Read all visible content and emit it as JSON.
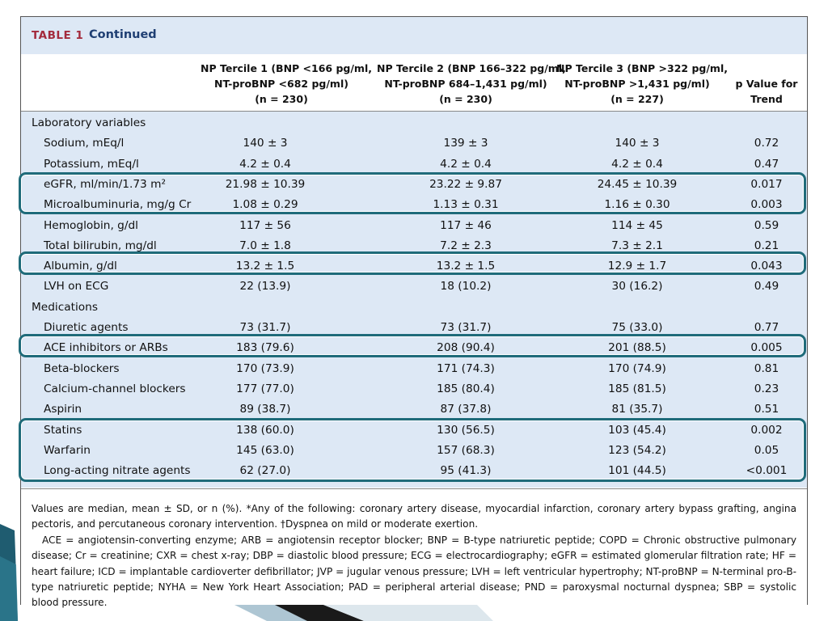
{
  "table": {
    "label": "TABLE 1",
    "continued": "Continued",
    "headers": {
      "col1": [
        "NP Tercile 1 (BNP <166 pg/ml,",
        "NT-proBNP <682 pg/ml)",
        "(n = 230)"
      ],
      "col2": [
        "NP Tercile 2 (BNP 166–322 pg/ml,",
        "NT-proBNP 684–1,431 pg/ml)",
        "(n = 230)"
      ],
      "col3": [
        "NP Tercile 3 (BNP >322 pg/ml,",
        "NT-proBNP >1,431 pg/ml)",
        "(n = 227)"
      ],
      "col4": [
        "p Value for",
        "Trend"
      ]
    },
    "rows": [
      {
        "label": "Laboratory variables",
        "section": true,
        "c1": "",
        "c2": "",
        "c3": "",
        "c4": ""
      },
      {
        "label": "Sodium, mEq/l",
        "c1": "140 ± 3",
        "c2": "139 ± 3",
        "c3": "140 ± 3",
        "c4": "0.72"
      },
      {
        "label": "Potassium, mEq/l",
        "c1": "4.2 ± 0.4",
        "c2": "4.2 ± 0.4",
        "c3": "4.2 ± 0.4",
        "c4": "0.47"
      },
      {
        "label": "eGFR, ml/min/1.73 m²",
        "c1": "21.98 ± 10.39",
        "c2": "23.22 ± 9.87",
        "c3": "24.45 ± 10.39",
        "c4": "0.017"
      },
      {
        "label": "Microalbuminuria, mg/g Cr",
        "c1": "1.08 ± 0.29",
        "c2": "1.13 ± 0.31",
        "c3": "1.16 ± 0.30",
        "c4": "0.003"
      },
      {
        "label": "Hemoglobin, g/dl",
        "c1": "117 ± 56",
        "c2": "117 ± 46",
        "c3": "114 ± 45",
        "c4": "0.59"
      },
      {
        "label": "Total bilirubin, mg/dl",
        "c1": "7.0 ± 1.8",
        "c2": "7.2 ± 2.3",
        "c3": "7.3 ± 2.1",
        "c4": "0.21"
      },
      {
        "label": "Albumin, g/dl",
        "c1": "13.2 ± 1.5",
        "c2": "13.2 ± 1.5",
        "c3": "12.9 ± 1.7",
        "c4": "0.043"
      },
      {
        "label": "LVH on ECG",
        "c1": "22 (13.9)",
        "c2": "18 (10.2)",
        "c3": "30 (16.2)",
        "c4": "0.49"
      },
      {
        "label": "Medications",
        "section": true,
        "c1": "",
        "c2": "",
        "c3": "",
        "c4": ""
      },
      {
        "label": "Diuretic agents",
        "c1": "73 (31.7)",
        "c2": "73 (31.7)",
        "c3": "75 (33.0)",
        "c4": "0.77"
      },
      {
        "label": "ACE inhibitors or ARBs",
        "c1": "183 (79.6)",
        "c2": "208 (90.4)",
        "c3": "201 (88.5)",
        "c4": "0.005"
      },
      {
        "label": "Beta-blockers",
        "c1": "170 (73.9)",
        "c2": "171 (74.3)",
        "c3": "170 (74.9)",
        "c4": "0.81"
      },
      {
        "label": "Calcium-channel blockers",
        "c1": "177 (77.0)",
        "c2": "185 (80.4)",
        "c3": "185 (81.5)",
        "c4": "0.23"
      },
      {
        "label": "Aspirin",
        "c1": "89 (38.7)",
        "c2": "87 (37.8)",
        "c3": "81 (35.7)",
        "c4": "0.51"
      },
      {
        "label": "Statins",
        "c1": "138 (60.0)",
        "c2": "130 (56.5)",
        "c3": "103 (45.4)",
        "c4": "0.002"
      },
      {
        "label": "Warfarin",
        "c1": "145 (63.0)",
        "c2": "157 (68.3)",
        "c3": "123 (54.2)",
        "c4": "0.05"
      },
      {
        "label": "Long-acting nitrate agents",
        "c1": "62 (27.0)",
        "c2": "95 (41.3)",
        "c3": "101 (44.5)",
        "c4": "<0.001"
      }
    ]
  },
  "footnotes": {
    "note1": "Values are median, mean ± SD, or n (%). *Any of the following: coronary artery disease, myocardial infarction, coronary artery bypass grafting, angina pectoris, and percutaneous coronary intervention. †Dyspnea on mild or moderate exertion.",
    "note2": "ACE = angiotensin-converting enzyme; ARB = angiotensin receptor blocker; BNP = B-type natriuretic peptide; COPD = Chronic obstructive pulmonary disease; Cr = creatinine; CXR = chest x-ray; DBP = diastolic blood pressure; ECG = electrocardiography; eGFR = estimated glomerular filtration rate; HF = heart failure; ICD = implantable cardioverter defibrillator; JVP = jugular venous pressure; LVH = left ventricular hypertrophy; NT-proBNP = N-terminal pro-B-type natriuretic peptide; NYHA = New York Heart Association; PAD = peripheral arterial disease; PND = paroxysmal nocturnal dyspnea; SBP = systolic blood pressure."
  },
  "colors": {
    "title_label": "#a32a3c",
    "title_text": "#1f3f73",
    "table_band": "#dde8f5",
    "highlight_border": "#1f6b7a"
  },
  "highlights": [
    "eGFR + Microalbuminuria",
    "Albumin",
    "ACE inhibitors or ARBs",
    "Statins + Warfarin + Long-acting nitrate agents"
  ]
}
